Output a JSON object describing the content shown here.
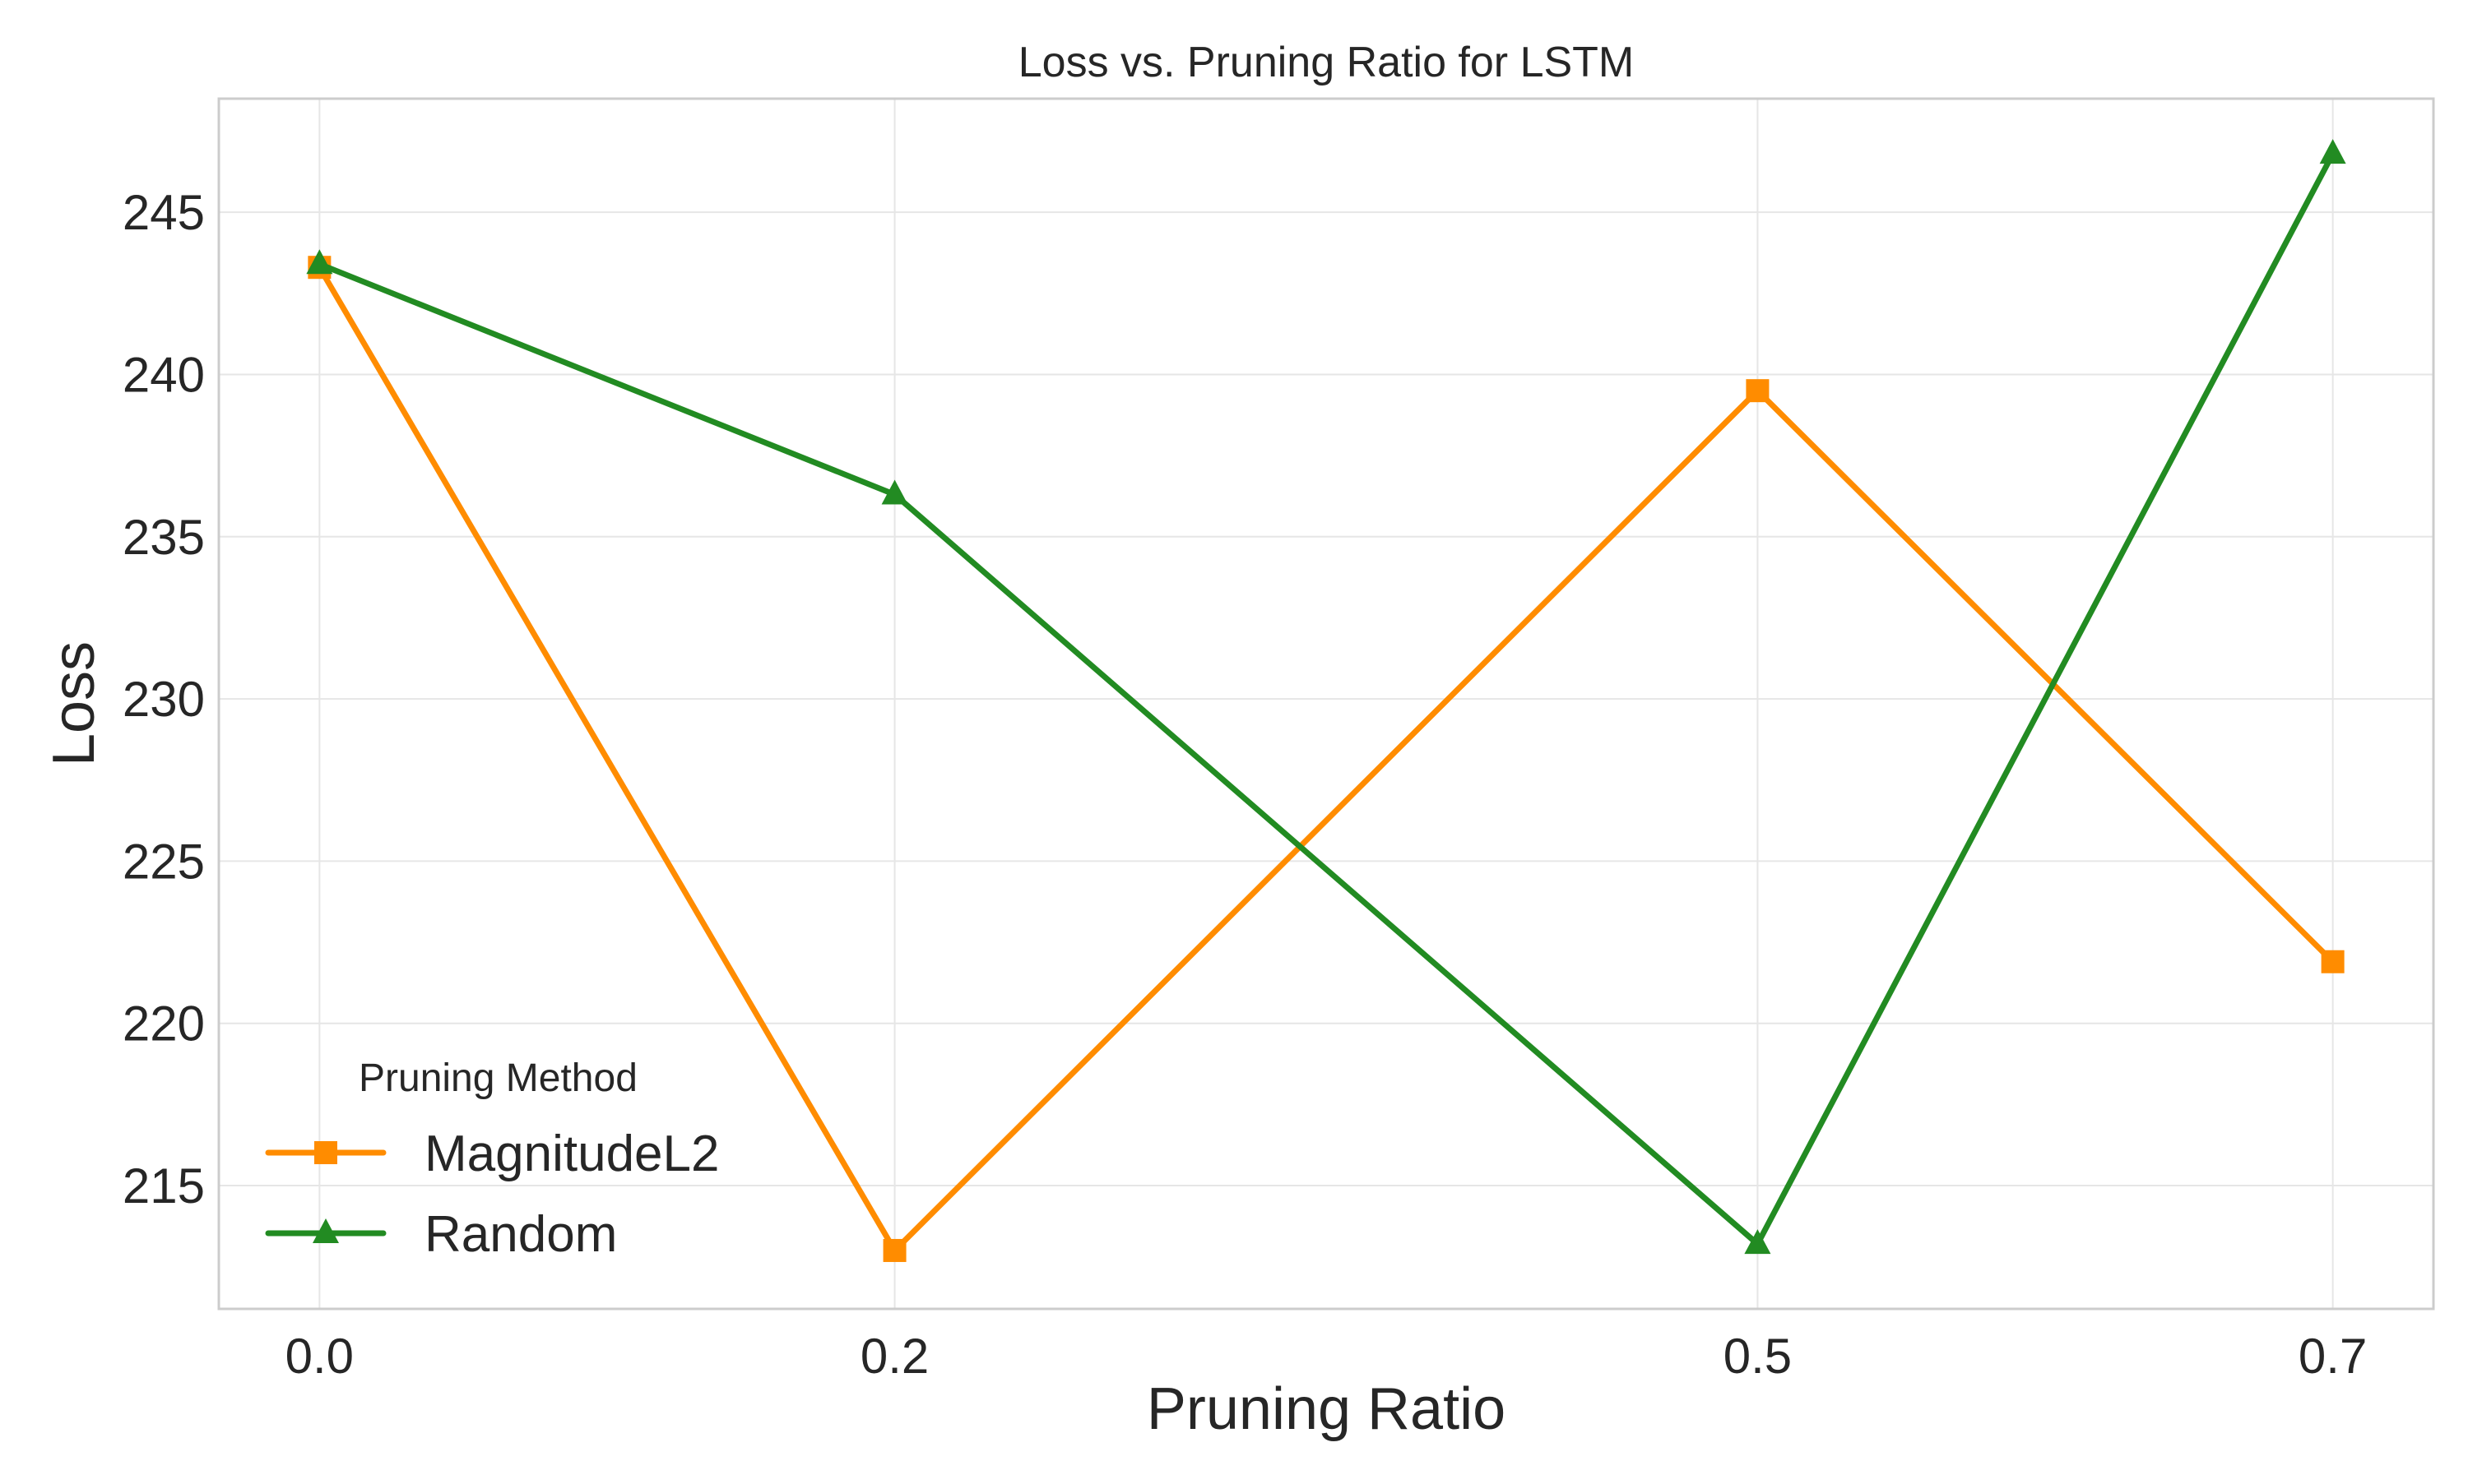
{
  "chart_data": {
    "type": "line",
    "title": "Loss vs. Pruning Ratio for LSTM",
    "xlabel": "Pruning Ratio",
    "ylabel": "Loss",
    "x": [
      0.0,
      0.2,
      0.5,
      0.7
    ],
    "x_tick_labels": [
      "0.0",
      "0.2",
      "0.5",
      "0.7"
    ],
    "xlim": [
      -0.035,
      0.735
    ],
    "ylim": [
      211.2,
      248.5
    ],
    "y_ticks": [
      215,
      220,
      225,
      230,
      235,
      240,
      245
    ],
    "grid": true,
    "legend": {
      "title": "Pruning Method",
      "placement": "lower-left"
    },
    "series": [
      {
        "name": "MagnitudeL2",
        "values": [
          243.3,
          213.0,
          239.5,
          221.9
        ],
        "color": "#ff8c00",
        "marker": "square"
      },
      {
        "name": "Random",
        "values": [
          243.4,
          236.3,
          213.2,
          246.8
        ],
        "color": "#228b22",
        "marker": "triangle"
      }
    ]
  }
}
